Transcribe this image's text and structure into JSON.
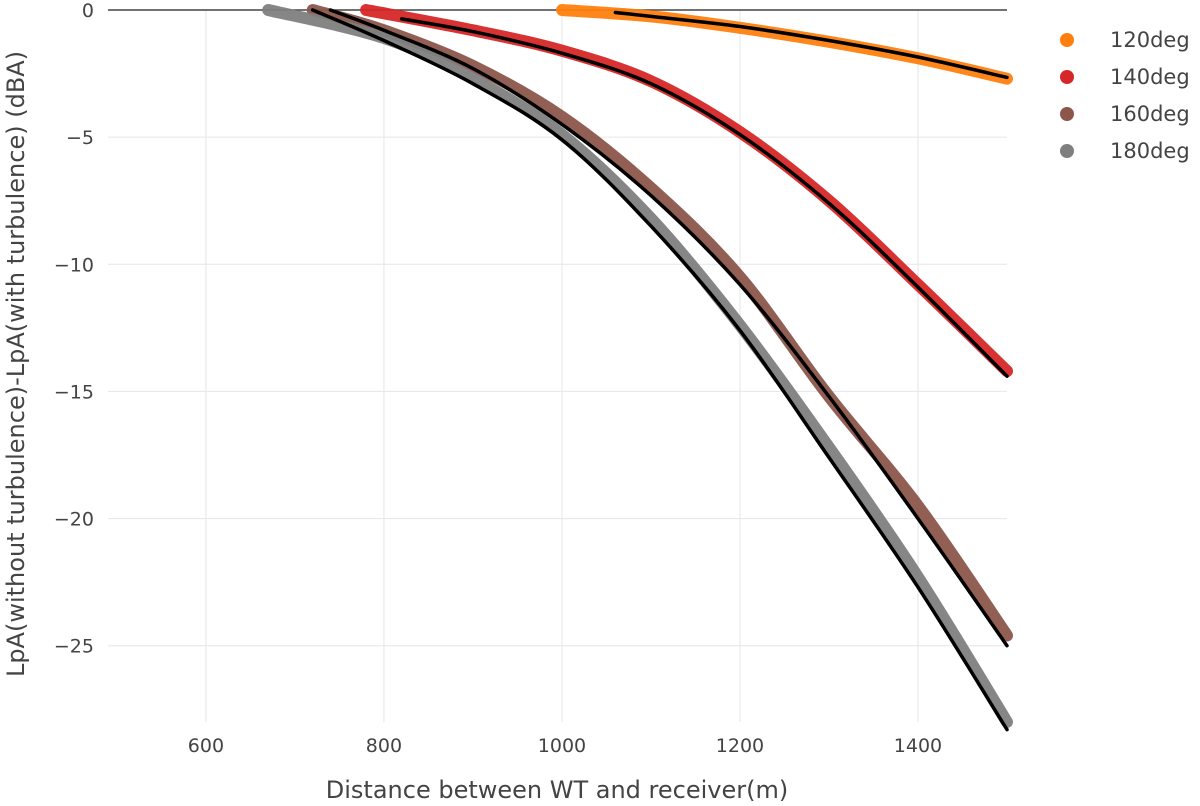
{
  "chart_data": {
    "type": "scatter",
    "title": "",
    "xlabel": "Distance between WT and receiver(m)",
    "ylabel": "LpA(without turbulence)-LpA(with turbulence) (dBA)",
    "xlim": [
      490,
      1500
    ],
    "ylim": [
      -28,
      0
    ],
    "xticks": [
      600,
      800,
      1000,
      1200,
      1400
    ],
    "yticks": [
      0,
      -5,
      -10,
      -15,
      -20,
      -25
    ],
    "grid": true,
    "legend_position": "right",
    "series": [
      {
        "name": "120deg",
        "color": "#ff7f0e",
        "x": [
          1000,
          1100,
          1200,
          1300,
          1400,
          1500
        ],
        "y": [
          0.0,
          -0.25,
          -0.7,
          -1.25,
          -1.9,
          -2.7
        ]
      },
      {
        "name": "140deg",
        "color": "#d62728",
        "x": [
          780,
          900,
          1000,
          1100,
          1200,
          1300,
          1400,
          1500
        ],
        "y": [
          0.0,
          -0.8,
          -1.6,
          -2.8,
          -4.8,
          -7.5,
          -10.8,
          -14.2
        ]
      },
      {
        "name": "160deg",
        "color": "#8c564b",
        "x": [
          720,
          800,
          900,
          1000,
          1100,
          1200,
          1300,
          1400,
          1500
        ],
        "y": [
          0.0,
          -0.8,
          -2.2,
          -4.2,
          -7.0,
          -10.5,
          -15.2,
          -19.5,
          -24.6
        ]
      },
      {
        "name": "180deg",
        "color": "#7f7f7f",
        "x": [
          670,
          800,
          900,
          1000,
          1100,
          1200,
          1300,
          1400,
          1500
        ],
        "y": [
          0.0,
          -1.1,
          -2.7,
          -4.9,
          -8.2,
          -12.4,
          -17.2,
          -22.3,
          -28.0
        ]
      }
    ],
    "fits": [
      {
        "color": "#000000",
        "x": [
          1060,
          1100,
          1200,
          1300,
          1400,
          1500
        ],
        "y": [
          -0.1,
          -0.25,
          -0.65,
          -1.2,
          -1.85,
          -2.65
        ]
      },
      {
        "color": "#000000",
        "x": [
          820,
          900,
          1000,
          1100,
          1200,
          1300,
          1400,
          1500
        ],
        "y": [
          -0.35,
          -0.85,
          -1.7,
          -2.9,
          -4.9,
          -7.6,
          -10.9,
          -14.4
        ]
      },
      {
        "color": "#000000",
        "x": [
          740,
          800,
          900,
          1000,
          1100,
          1200,
          1300,
          1400,
          1500
        ],
        "y": [
          0.0,
          -0.8,
          -2.3,
          -4.5,
          -7.3,
          -10.8,
          -15.2,
          -20.0,
          -25.0
        ]
      },
      {
        "color": "#000000",
        "x": [
          720,
          800,
          900,
          1000,
          1100,
          1200,
          1300,
          1400,
          1500
        ],
        "y": [
          0.0,
          -1.2,
          -2.9,
          -5.1,
          -8.5,
          -12.6,
          -17.6,
          -22.7,
          -28.3
        ]
      }
    ]
  }
}
